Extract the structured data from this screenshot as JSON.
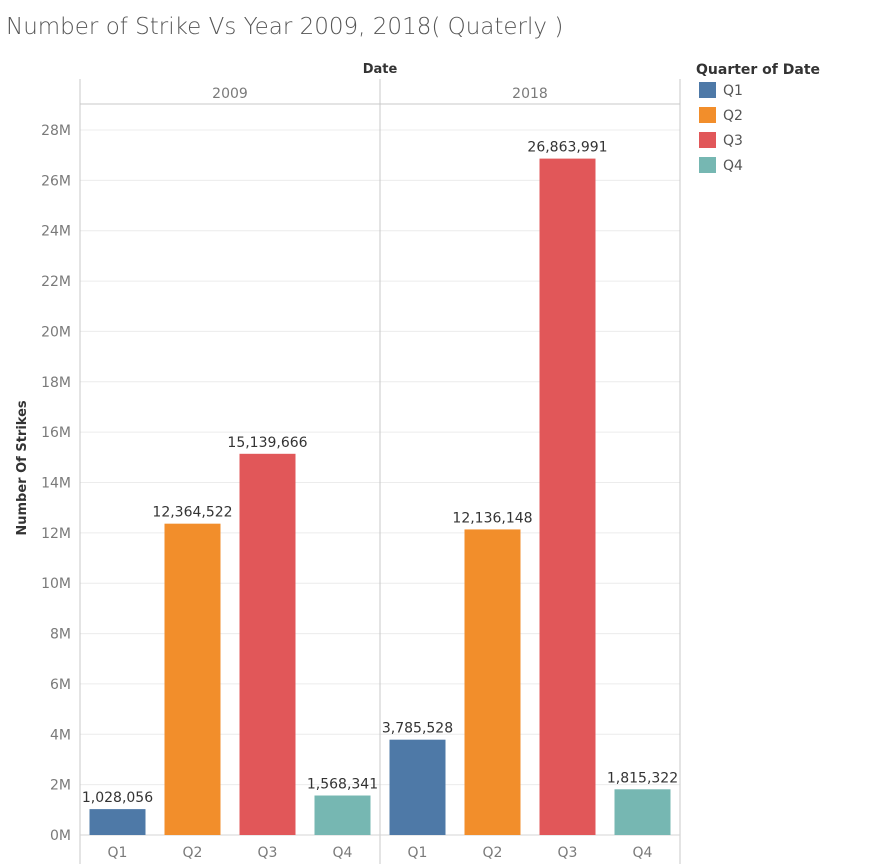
{
  "chart_data": {
    "type": "bar",
    "title": "Number of Strike Vs Year 2009, 2018( Quaterly )",
    "column_header": "Date",
    "ylabel": "Number Of Strikes",
    "ylim": [
      0,
      28000000
    ],
    "y_ticks": [
      0,
      2000000,
      4000000,
      6000000,
      8000000,
      10000000,
      12000000,
      14000000,
      16000000,
      18000000,
      20000000,
      22000000,
      24000000,
      26000000,
      28000000
    ],
    "y_tick_labels": [
      "0M",
      "2M",
      "4M",
      "6M",
      "8M",
      "10M",
      "12M",
      "14M",
      "16M",
      "18M",
      "20M",
      "22M",
      "24M",
      "26M",
      "28M"
    ],
    "grid": true,
    "legend": {
      "title": "Quarter of Date",
      "position": "top-right",
      "entries": [
        {
          "label": "Q1",
          "color": "#4e79a7"
        },
        {
          "label": "Q2",
          "color": "#f28e2b"
        },
        {
          "label": "Q3",
          "color": "#e15759"
        },
        {
          "label": "Q4",
          "color": "#76b7b2"
        }
      ]
    },
    "categories": [
      "Q1",
      "Q2",
      "Q3",
      "Q4"
    ],
    "panels": [
      {
        "name": "2009",
        "values": [
          1028056,
          12364522,
          15139666,
          1568341
        ],
        "labels": [
          "1,028,056",
          "12,364,522",
          "15,139,666",
          "1,568,341"
        ]
      },
      {
        "name": "2018",
        "values": [
          3785528,
          12136148,
          26863991,
          1815322
        ],
        "labels": [
          "3,785,528",
          "12,136,148",
          "26,863,991",
          "1,815,322"
        ]
      }
    ]
  }
}
